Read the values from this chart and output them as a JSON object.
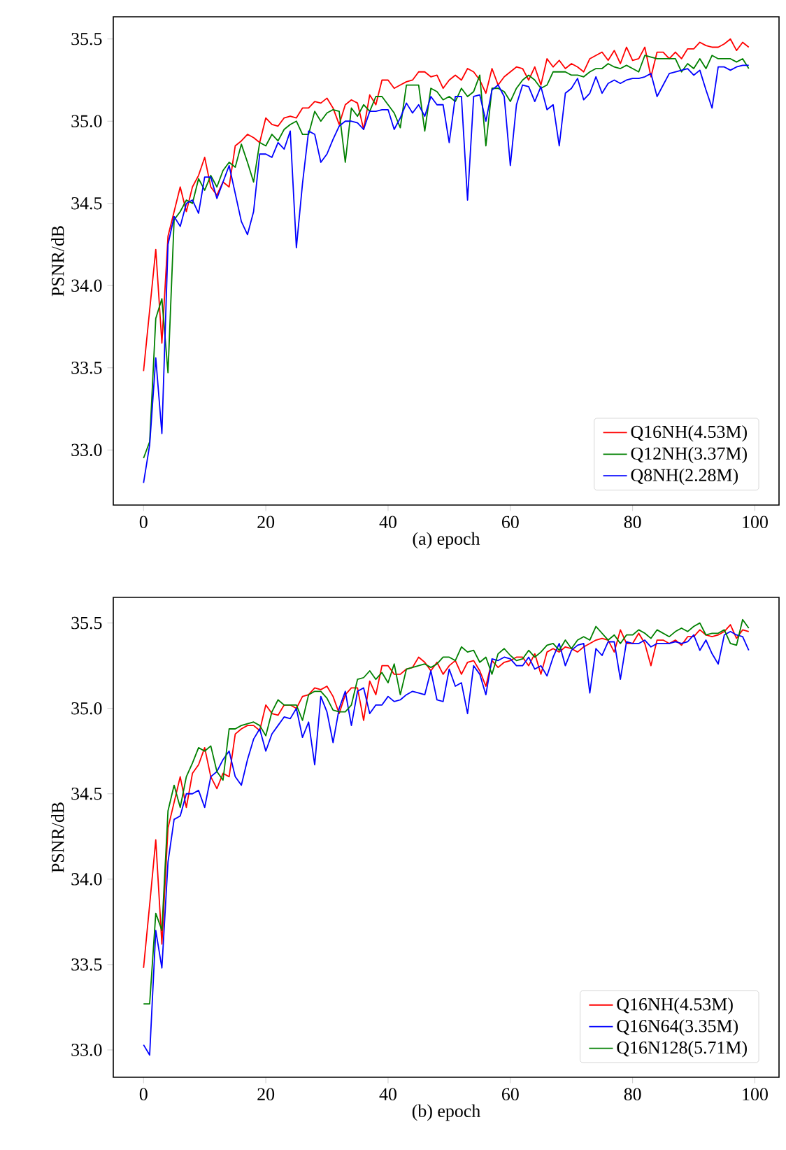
{
  "chart_data": [
    {
      "type": "line",
      "xlabel": "(a) epoch",
      "ylabel": "PSNR/dB",
      "xlim": [
        -4.95,
        103.95
      ],
      "ylim": [
        32.665,
        35.635
      ],
      "xticks": [
        0,
        20,
        40,
        60,
        80,
        100
      ],
      "yticks": [
        {
          "value": 33,
          "label": "33.0"
        },
        {
          "value": 33.5,
          "label": "33.5"
        },
        {
          "value": 34,
          "label": "34.0"
        },
        {
          "value": 34.5,
          "label": "34.5"
        },
        {
          "value": 35,
          "label": "35.0"
        },
        {
          "value": 35.5,
          "label": "35.5"
        }
      ],
      "legend": "bottom right",
      "grid": false,
      "x": [
        0,
        1,
        2,
        3,
        4,
        5,
        6,
        7,
        8,
        9,
        10,
        11,
        12,
        13,
        14,
        15,
        16,
        17,
        18,
        19,
        20,
        21,
        22,
        23,
        24,
        25,
        26,
        27,
        28,
        29,
        30,
        31,
        32,
        33,
        34,
        35,
        36,
        37,
        38,
        39,
        40,
        41,
        42,
        43,
        44,
        45,
        46,
        47,
        48,
        49,
        50,
        51,
        52,
        53,
        54,
        55,
        56,
        57,
        58,
        59,
        60,
        61,
        62,
        63,
        64,
        65,
        66,
        67,
        68,
        69,
        70,
        71,
        72,
        73,
        74,
        75,
        76,
        77,
        78,
        79,
        80,
        81,
        82,
        83,
        84,
        85,
        86,
        87,
        88,
        89,
        90,
        91,
        92,
        93,
        94,
        95,
        96,
        97,
        98,
        99
      ],
      "series": [
        {
          "name": "Q16NH(4.53M)",
          "color": "#ff0000",
          "values": [
            33.48,
            33.85,
            34.22,
            33.65,
            34.3,
            34.45,
            34.6,
            34.45,
            34.6,
            34.67,
            34.78,
            34.6,
            34.55,
            34.63,
            34.6,
            34.85,
            34.88,
            34.92,
            34.9,
            34.87,
            35.02,
            34.98,
            34.97,
            35.02,
            35.03,
            35.02,
            35.08,
            35.08,
            35.12,
            35.11,
            35.14,
            35.08,
            34.98,
            35.1,
            35.13,
            35.11,
            34.95,
            35.16,
            35.1,
            35.25,
            35.25,
            35.2,
            35.22,
            35.24,
            35.25,
            35.3,
            35.3,
            35.27,
            35.28,
            35.2,
            35.25,
            35.28,
            35.25,
            35.32,
            35.3,
            35.25,
            35.17,
            35.32,
            35.22,
            35.27,
            35.3,
            35.33,
            35.32,
            35.25,
            35.33,
            35.22,
            35.38,
            35.33,
            35.37,
            35.32,
            35.35,
            35.33,
            35.3,
            35.38,
            35.4,
            35.42,
            35.37,
            35.43,
            35.35,
            35.45,
            35.37,
            35.38,
            35.45,
            35.27,
            35.42,
            35.42,
            35.38,
            35.42,
            35.38,
            35.44,
            35.44,
            35.48,
            35.46,
            35.45,
            35.45,
            35.47,
            35.5,
            35.43,
            35.48,
            35.45
          ]
        },
        {
          "name": "Q12NH(3.37M)",
          "color": "#008000",
          "values": [
            32.95,
            33.05,
            33.8,
            33.92,
            33.47,
            34.4,
            34.45,
            34.52,
            34.5,
            34.65,
            34.58,
            34.67,
            34.6,
            34.7,
            34.75,
            34.72,
            34.86,
            34.75,
            34.63,
            34.87,
            34.85,
            34.92,
            34.88,
            34.95,
            34.98,
            35.0,
            34.92,
            34.92,
            35.06,
            35.0,
            35.05,
            35.07,
            35.06,
            34.75,
            35.08,
            35.03,
            35.1,
            35.06,
            35.15,
            35.15,
            35.1,
            35.05,
            34.96,
            35.22,
            35.22,
            35.22,
            34.94,
            35.2,
            35.18,
            35.13,
            35.15,
            35.12,
            35.2,
            35.15,
            35.18,
            35.28,
            34.85,
            35.2,
            35.2,
            35.18,
            35.12,
            35.2,
            35.25,
            35.28,
            35.25,
            35.2,
            35.22,
            35.3,
            35.3,
            35.3,
            35.28,
            35.28,
            35.27,
            35.3,
            35.32,
            35.32,
            35.35,
            35.33,
            35.32,
            35.34,
            35.32,
            35.3,
            35.4,
            35.39,
            35.38,
            35.38,
            35.38,
            35.38,
            35.3,
            35.35,
            35.32,
            35.38,
            35.32,
            35.4,
            35.38,
            35.38,
            35.38,
            35.36,
            35.38,
            35.32
          ]
        },
        {
          "name": "Q8NH(2.28M)",
          "color": "#0000ff",
          "values": [
            32.8,
            33.03,
            33.56,
            33.1,
            34.25,
            34.42,
            34.36,
            34.5,
            34.52,
            34.44,
            34.66,
            34.66,
            34.53,
            34.63,
            34.73,
            34.56,
            34.39,
            34.31,
            34.45,
            34.8,
            34.8,
            34.78,
            34.87,
            34.83,
            34.94,
            34.23,
            34.62,
            34.94,
            34.92,
            34.75,
            34.8,
            34.89,
            34.97,
            35.0,
            35.0,
            34.99,
            34.95,
            35.06,
            35.06,
            35.07,
            35.07,
            34.95,
            35.02,
            35.11,
            35.05,
            35.1,
            35.03,
            35.15,
            35.1,
            35.1,
            34.87,
            35.15,
            35.15,
            34.52,
            35.15,
            35.16,
            35.0,
            35.19,
            35.22,
            35.15,
            34.73,
            35.1,
            35.22,
            35.21,
            35.12,
            35.21,
            35.07,
            35.1,
            34.85,
            35.17,
            35.2,
            35.26,
            35.13,
            35.17,
            35.27,
            35.17,
            35.23,
            35.25,
            35.23,
            35.25,
            35.26,
            35.26,
            35.27,
            35.29,
            35.15,
            35.22,
            35.29,
            35.3,
            35.31,
            35.32,
            35.28,
            35.31,
            35.19,
            35.08,
            35.33,
            35.33,
            35.31,
            35.33,
            35.34,
            35.34
          ]
        }
      ]
    },
    {
      "type": "line",
      "xlabel": "(b) epoch",
      "ylabel": "PSNR/dB",
      "xlim": [
        -4.95,
        103.95
      ],
      "ylim": [
        32.84,
        35.65
      ],
      "xticks": [
        0,
        20,
        40,
        60,
        80,
        100
      ],
      "yticks": [
        {
          "value": 33,
          "label": "33.0"
        },
        {
          "value": 33.5,
          "label": "33.5"
        },
        {
          "value": 34,
          "label": "34.0"
        },
        {
          "value": 34.5,
          "label": "34.5"
        },
        {
          "value": 35,
          "label": "35.0"
        },
        {
          "value": 35.5,
          "label": "35.5"
        }
      ],
      "legend": "bottom right",
      "grid": false,
      "x": [
        0,
        1,
        2,
        3,
        4,
        5,
        6,
        7,
        8,
        9,
        10,
        11,
        12,
        13,
        14,
        15,
        16,
        17,
        18,
        19,
        20,
        21,
        22,
        23,
        24,
        25,
        26,
        27,
        28,
        29,
        30,
        31,
        32,
        33,
        34,
        35,
        36,
        37,
        38,
        39,
        40,
        41,
        42,
        43,
        44,
        45,
        46,
        47,
        48,
        49,
        50,
        51,
        52,
        53,
        54,
        55,
        56,
        57,
        58,
        59,
        60,
        61,
        62,
        63,
        64,
        65,
        66,
        67,
        68,
        69,
        70,
        71,
        72,
        73,
        74,
        75,
        76,
        77,
        78,
        79,
        80,
        81,
        82,
        83,
        84,
        85,
        86,
        87,
        88,
        89,
        90,
        91,
        92,
        93,
        94,
        95,
        96,
        97,
        98,
        99
      ],
      "series": [
        {
          "name": "Q16NH(4.53M)",
          "color": "#ff0000",
          "values": [
            33.48,
            33.85,
            34.23,
            33.62,
            34.3,
            34.45,
            34.6,
            34.42,
            34.62,
            34.67,
            34.77,
            34.6,
            34.53,
            34.62,
            34.6,
            34.85,
            34.88,
            34.9,
            34.9,
            34.87,
            35.02,
            34.97,
            34.96,
            35.02,
            35.02,
            35.0,
            35.07,
            35.08,
            35.12,
            35.11,
            35.13,
            35.07,
            34.97,
            35.08,
            35.12,
            35.12,
            34.93,
            35.16,
            35.08,
            35.25,
            35.25,
            35.2,
            35.2,
            35.23,
            35.24,
            35.3,
            35.27,
            35.22,
            35.27,
            35.2,
            35.25,
            35.28,
            35.2,
            35.27,
            35.28,
            35.22,
            35.13,
            35.28,
            35.24,
            35.27,
            35.28,
            35.3,
            35.3,
            35.25,
            35.32,
            35.2,
            35.33,
            35.35,
            35.33,
            35.36,
            35.35,
            35.33,
            35.36,
            35.38,
            35.4,
            35.41,
            35.4,
            35.33,
            35.46,
            35.38,
            35.38,
            35.44,
            35.38,
            35.25,
            35.4,
            35.4,
            35.38,
            35.4,
            35.37,
            35.42,
            35.42,
            35.46,
            35.43,
            35.42,
            35.43,
            35.45,
            35.49,
            35.41,
            35.46,
            35.45
          ]
        },
        {
          "name": "Q16N64(3.35M)",
          "color": "#0000ff",
          "values": [
            33.03,
            32.97,
            33.7,
            33.48,
            34.1,
            34.35,
            34.37,
            34.5,
            34.5,
            34.52,
            34.42,
            34.6,
            34.63,
            34.7,
            34.75,
            34.6,
            34.55,
            34.7,
            34.82,
            34.88,
            34.75,
            34.85,
            34.9,
            34.95,
            34.94,
            35.0,
            34.83,
            34.92,
            34.67,
            35.07,
            34.98,
            34.8,
            35.0,
            35.1,
            34.9,
            35.1,
            35.12,
            34.97,
            35.02,
            35.02,
            35.07,
            35.04,
            35.05,
            35.08,
            35.1,
            35.09,
            35.08,
            35.22,
            35.05,
            35.04,
            35.23,
            35.13,
            35.15,
            34.97,
            35.25,
            35.2,
            35.08,
            35.29,
            35.28,
            35.3,
            35.29,
            35.25,
            35.25,
            35.3,
            35.23,
            35.25,
            35.19,
            35.3,
            35.38,
            35.25,
            35.34,
            35.37,
            35.38,
            35.09,
            35.35,
            35.31,
            35.39,
            35.39,
            35.17,
            35.39,
            35.38,
            35.38,
            35.4,
            35.36,
            35.38,
            35.38,
            35.38,
            35.39,
            35.38,
            35.39,
            35.43,
            35.34,
            35.4,
            35.32,
            35.26,
            35.43,
            35.45,
            35.43,
            35.42,
            35.34
          ]
        },
        {
          "name": "Q16N128(5.71M)",
          "color": "#008000",
          "values": [
            33.27,
            33.27,
            33.8,
            33.7,
            34.4,
            34.55,
            34.42,
            34.6,
            34.68,
            34.77,
            34.75,
            34.78,
            34.63,
            34.58,
            34.88,
            34.88,
            34.9,
            34.91,
            34.92,
            34.9,
            34.84,
            34.98,
            35.05,
            35.02,
            35.02,
            35.02,
            34.93,
            35.08,
            35.1,
            35.1,
            35.06,
            34.99,
            34.98,
            34.98,
            35.02,
            35.17,
            35.18,
            35.22,
            35.17,
            35.21,
            35.15,
            35.26,
            35.08,
            35.23,
            35.24,
            35.25,
            35.26,
            35.24,
            35.26,
            35.3,
            35.3,
            35.28,
            35.36,
            35.33,
            35.34,
            35.27,
            35.3,
            35.2,
            35.32,
            35.35,
            35.31,
            35.28,
            35.29,
            35.34,
            35.3,
            35.33,
            35.37,
            35.38,
            35.34,
            35.4,
            35.35,
            35.4,
            35.42,
            35.4,
            35.48,
            35.44,
            35.4,
            35.43,
            35.38,
            35.43,
            35.43,
            35.46,
            35.44,
            35.41,
            35.46,
            35.44,
            35.42,
            35.45,
            35.47,
            35.45,
            35.48,
            35.5,
            35.43,
            35.44,
            35.44,
            35.46,
            35.38,
            35.37,
            35.52,
            35.47
          ]
        }
      ]
    }
  ]
}
